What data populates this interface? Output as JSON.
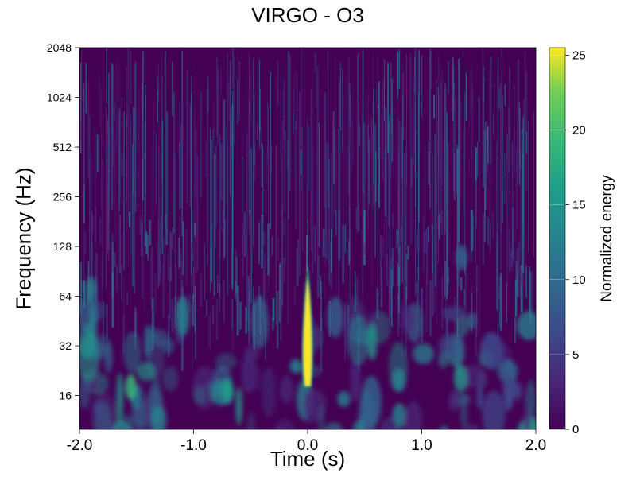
{
  "chart_data": {
    "type": "heatmap",
    "title": "VIRGO - O3",
    "xlabel": "Time (s)",
    "ylabel": "Frequency (Hz)",
    "xlim": [
      -2.0,
      2.0
    ],
    "ylim": [
      10,
      2048
    ],
    "yscale": "log2",
    "x_ticks": [
      "-2.0",
      "-1.0",
      "0.0",
      "1.0",
      "2.0"
    ],
    "x_tick_values": [
      -2.0,
      -1.0,
      0.0,
      1.0,
      2.0
    ],
    "y_ticks": [
      "16",
      "32",
      "64",
      "128",
      "256",
      "512",
      "1024",
      "2048"
    ],
    "y_tick_values": [
      16,
      32,
      64,
      128,
      256,
      512,
      1024,
      2048
    ],
    "colormap": "viridis",
    "colorbar": {
      "label": "Normalized energy",
      "range": [
        0,
        25.5
      ],
      "ticks": [
        "0",
        "5",
        "10",
        "15",
        "20",
        "25"
      ],
      "tick_values": [
        0,
        5,
        10,
        15,
        20,
        25
      ]
    },
    "grid": false,
    "events": [
      {
        "name": "chirp",
        "time": 0.0,
        "freq_low": 18,
        "freq_high": 100,
        "peak_energy": 25.5
      }
    ]
  }
}
